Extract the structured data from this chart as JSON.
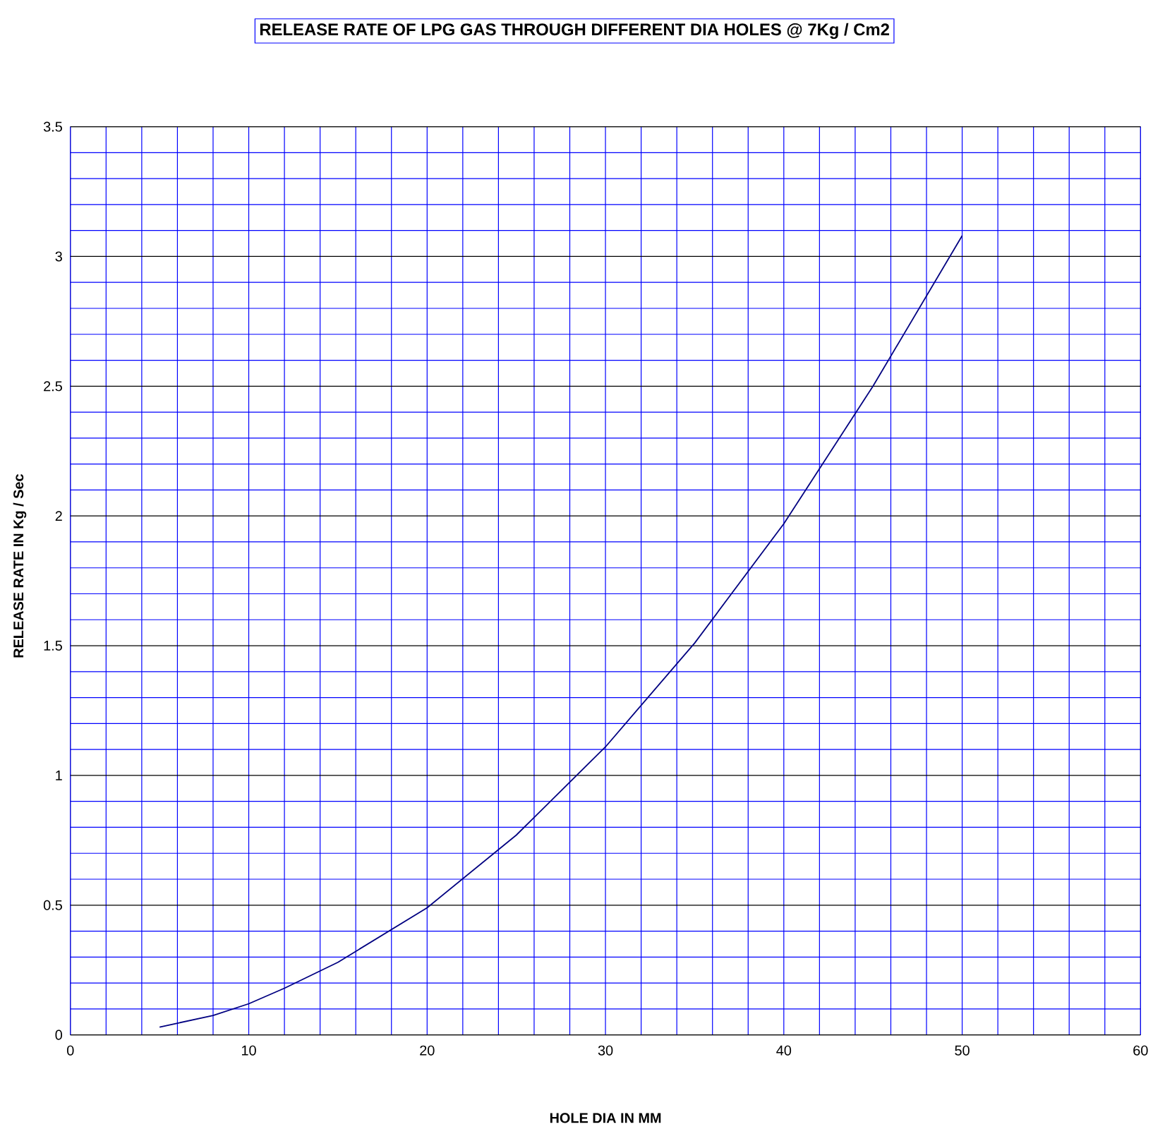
{
  "chart_data": {
    "type": "line",
    "title": "RELEASE RATE OF LPG GAS THROUGH DIFFERENT DIA HOLES @ 7Kg / Cm2",
    "xlabel": "HOLE DIA IN MM",
    "ylabel": "RELEASE RATE IN Kg / Sec",
    "x": [
      5,
      6,
      8,
      10,
      12,
      15,
      20,
      25,
      30,
      35,
      40,
      45,
      50
    ],
    "series": [
      {
        "color": "#000080",
        "values": [
          0.03,
          0.045,
          0.075,
          0.12,
          0.18,
          0.28,
          0.49,
          0.77,
          1.11,
          1.51,
          1.97,
          2.5,
          3.08
        ]
      }
    ],
    "xlim": [
      0,
      60
    ],
    "ylim": [
      0,
      3.5
    ],
    "xticks": [
      0,
      {
        "value": 2,
        "label": null
      },
      {
        "value": 4,
        "label": null
      },
      {
        "value": 6,
        "label": null
      },
      {
        "value": 8,
        "label": null
      },
      10,
      {
        "value": 12,
        "label": null
      },
      {
        "value": 14,
        "label": null
      },
      {
        "value": 16,
        "label": null
      },
      {
        "value": 18,
        "label": null
      },
      20,
      {
        "value": 22,
        "label": null
      },
      {
        "value": 24,
        "label": null
      },
      {
        "value": 26,
        "label": null
      },
      {
        "value": 28,
        "label": null
      },
      30,
      {
        "value": 32,
        "label": null
      },
      {
        "value": 34,
        "label": null
      },
      {
        "value": 36,
        "label": null
      },
      {
        "value": 38,
        "label": null
      },
      40,
      {
        "value": 42,
        "label": null
      },
      {
        "value": 44,
        "label": null
      },
      {
        "value": 46,
        "label": null
      },
      {
        "value": 48,
        "label": null
      },
      50,
      {
        "value": 52,
        "label": null
      },
      {
        "value": 54,
        "label": null
      },
      {
        "value": 56,
        "label": null
      },
      {
        "value": 58,
        "label": null
      },
      60
    ],
    "yticks": [
      0,
      {
        "value": 0.1,
        "label": null
      },
      {
        "value": 0.2,
        "label": null
      },
      {
        "value": 0.3,
        "label": null
      },
      {
        "value": 0.4,
        "label": null
      },
      0.5,
      {
        "value": 0.6,
        "label": null
      },
      {
        "value": 0.7,
        "label": null
      },
      {
        "value": 0.8,
        "label": null
      },
      {
        "value": 0.9,
        "label": null
      },
      1,
      {
        "value": 1.1,
        "label": null
      },
      {
        "value": 1.2,
        "label": null
      },
      {
        "value": 1.3,
        "label": null
      },
      {
        "value": 1.4,
        "label": null
      },
      1.5,
      {
        "value": 1.6,
        "label": null
      },
      {
        "value": 1.7,
        "label": null
      },
      {
        "value": 1.8,
        "label": null
      },
      {
        "value": 1.9,
        "label": null
      },
      2,
      {
        "value": 2.1,
        "label": null
      },
      {
        "value": 2.2,
        "label": null
      },
      {
        "value": 2.3,
        "label": null
      },
      {
        "value": 2.4,
        "label": null
      },
      2.5,
      {
        "value": 2.6,
        "label": null
      },
      {
        "value": 2.7,
        "label": null
      },
      {
        "value": 2.8,
        "label": null
      },
      {
        "value": 2.9,
        "label": null
      },
      3,
      {
        "value": 3.1,
        "label": null
      },
      {
        "value": 3.2,
        "label": null
      },
      {
        "value": 3.3,
        "label": null
      },
      {
        "value": 3.4,
        "label": null
      },
      3.5
    ],
    "grid": true,
    "marker": "none",
    "line_style": "solid"
  }
}
